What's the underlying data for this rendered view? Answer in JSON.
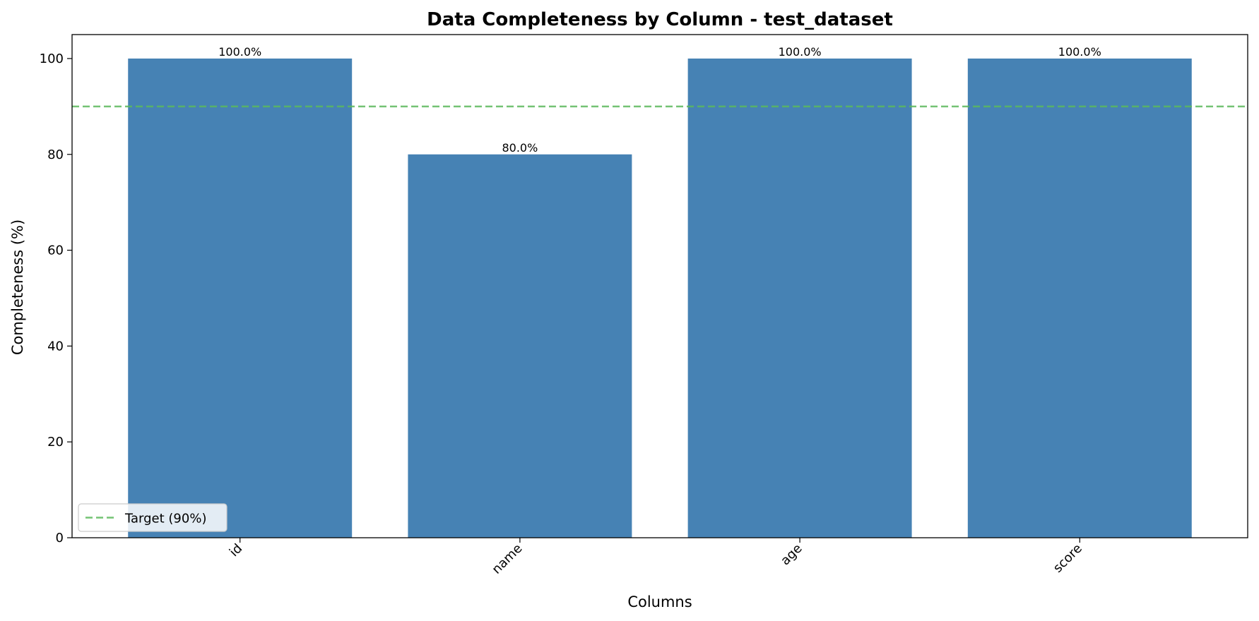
{
  "chart_data": {
    "type": "bar",
    "title": "Data Completeness by Column - test_dataset",
    "xlabel": "Columns",
    "ylabel": "Completeness (%)",
    "categories": [
      "id",
      "name",
      "age",
      "score"
    ],
    "values": [
      100.0,
      80.0,
      100.0,
      100.0
    ],
    "data_labels": [
      "100.0%",
      "80.0%",
      "100.0%",
      "100.0%"
    ],
    "ylim": [
      0,
      105
    ],
    "yticks": [
      0,
      20,
      40,
      60,
      80,
      100
    ],
    "grid": false,
    "bar_color": "#4682b4",
    "target_line": {
      "value": 90,
      "label": "Target (90%)",
      "color": "#5cb85c",
      "style": "dashed"
    },
    "legend": {
      "placement": "lower-left",
      "entries": [
        "Target (90%)"
      ]
    }
  }
}
